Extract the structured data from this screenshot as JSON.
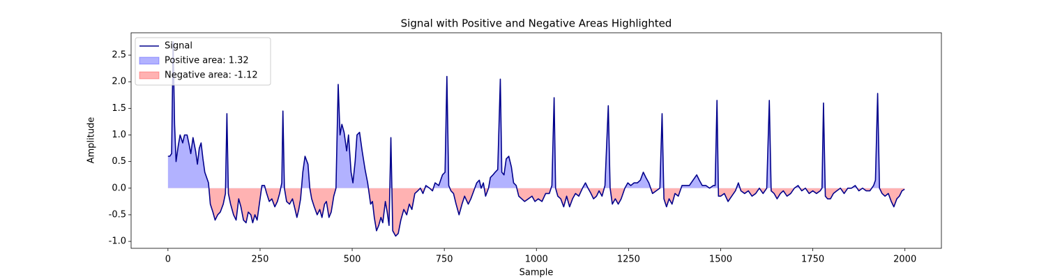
{
  "chart_data": {
    "type": "line",
    "title": "Signal with Positive and Negative Areas Highlighted",
    "x_label": "Sample",
    "y_label": "Amplitude",
    "x": [
      0,
      5,
      10,
      14,
      18,
      22,
      28,
      33,
      40,
      45,
      52,
      58,
      62,
      68,
      75,
      80,
      85,
      90,
      95,
      100,
      105,
      110,
      115,
      122,
      128,
      135,
      142,
      150,
      156,
      160,
      164,
      170,
      178,
      185,
      192,
      198,
      205,
      212,
      218,
      225,
      230,
      236,
      242,
      248,
      255,
      262,
      268,
      275,
      282,
      290,
      297,
      303,
      309,
      312,
      316,
      322,
      330,
      338,
      345,
      350,
      355,
      360,
      366,
      372,
      380,
      385,
      390,
      397,
      405,
      412,
      418,
      425,
      430,
      437,
      443,
      450,
      456,
      462,
      467,
      472,
      478,
      485,
      490,
      497,
      502,
      508,
      513,
      520,
      527,
      535,
      542,
      550,
      555,
      560,
      566,
      572,
      578,
      583,
      590,
      595,
      600,
      605,
      610,
      618,
      625,
      632,
      640,
      648,
      655,
      662,
      670,
      678,
      685,
      692,
      700,
      710,
      718,
      725,
      735,
      745,
      752,
      757,
      762,
      768,
      775,
      782,
      790,
      798,
      805,
      815,
      822,
      830,
      838,
      845,
      850,
      856,
      862,
      870,
      875,
      882,
      888,
      895,
      902,
      906,
      912,
      918,
      925,
      932,
      938,
      945,
      952,
      960,
      968,
      978,
      988,
      996,
      1005,
      1015,
      1025,
      1035,
      1042,
      1048,
      1052,
      1058,
      1066,
      1074,
      1082,
      1090,
      1098,
      1106,
      1115,
      1125,
      1133,
      1140,
      1148,
      1155,
      1163,
      1170,
      1178,
      1186,
      1195,
      1200,
      1206,
      1214,
      1222,
      1230,
      1240,
      1248,
      1256,
      1265,
      1274,
      1282,
      1290,
      1297,
      1305,
      1315,
      1325,
      1335,
      1341,
      1346,
      1353,
      1360,
      1368,
      1376,
      1385,
      1395,
      1405,
      1415,
      1425,
      1435,
      1442,
      1450,
      1460,
      1470,
      1480,
      1485,
      1490,
      1494,
      1500,
      1510,
      1520,
      1530,
      1540,
      1548,
      1555,
      1565,
      1575,
      1585,
      1595,
      1605,
      1615,
      1625,
      1632,
      1637,
      1645,
      1653,
      1662,
      1670,
      1680,
      1690,
      1700,
      1710,
      1720,
      1730,
      1740,
      1750,
      1760,
      1770,
      1775,
      1779,
      1784,
      1790,
      1798,
      1806,
      1815,
      1825,
      1835,
      1845,
      1855,
      1865,
      1875,
      1885,
      1895,
      1905,
      1915,
      1920,
      1926,
      1931,
      1938,
      1946,
      1955,
      1963,
      1970,
      1978,
      1985,
      1992,
      1999
    ],
    "series": [
      {
        "name": "Signal",
        "color": "#00008b",
        "values": [
          0.6,
          0.6,
          0.65,
          2.75,
          1.2,
          0.5,
          0.8,
          1.0,
          0.85,
          1.0,
          1.0,
          0.8,
          0.65,
          0.95,
          0.7,
          0.45,
          0.75,
          0.85,
          0.55,
          0.3,
          0.2,
          0.1,
          -0.3,
          -0.45,
          -0.6,
          -0.5,
          -0.45,
          -0.3,
          -0.1,
          1.4,
          -0.1,
          -0.3,
          -0.5,
          -0.6,
          -0.2,
          -0.35,
          -0.6,
          -0.65,
          -0.45,
          -0.5,
          -0.65,
          -0.5,
          -0.6,
          -0.3,
          0.05,
          0.05,
          -0.1,
          -0.25,
          -0.2,
          -0.35,
          -0.25,
          -0.1,
          0.1,
          1.45,
          0.0,
          -0.25,
          -0.3,
          -0.2,
          -0.4,
          -0.55,
          -0.4,
          -0.2,
          0.3,
          0.6,
          0.45,
          0.0,
          -0.2,
          -0.35,
          -0.5,
          -0.4,
          -0.55,
          -0.3,
          -0.25,
          -0.55,
          -0.45,
          -0.15,
          0.0,
          1.95,
          1.0,
          1.2,
          1.05,
          0.7,
          1.0,
          0.3,
          0.1,
          0.5,
          1.0,
          1.05,
          0.7,
          0.35,
          0.1,
          -0.3,
          -0.25,
          -0.55,
          -0.8,
          -0.7,
          -0.55,
          -0.65,
          -0.25,
          -0.45,
          -0.7,
          0.95,
          -0.8,
          -0.9,
          -0.85,
          -0.6,
          -0.4,
          -0.5,
          -0.3,
          -0.4,
          -0.1,
          -0.05,
          0.0,
          -0.1,
          0.05,
          0.0,
          -0.05,
          0.1,
          0.05,
          0.25,
          0.3,
          2.1,
          0.05,
          -0.05,
          -0.1,
          -0.3,
          -0.5,
          -0.3,
          -0.15,
          -0.3,
          -0.2,
          -0.05,
          0.1,
          0.15,
          0.0,
          0.1,
          -0.15,
          0.0,
          0.2,
          0.25,
          0.3,
          0.35,
          2.05,
          0.3,
          0.25,
          0.55,
          0.6,
          0.4,
          0.1,
          0.05,
          -0.15,
          -0.2,
          -0.25,
          -0.2,
          -0.15,
          -0.25,
          -0.2,
          -0.25,
          -0.1,
          -0.1,
          0.05,
          1.7,
          0.0,
          -0.15,
          -0.2,
          -0.35,
          -0.15,
          -0.35,
          -0.2,
          -0.1,
          -0.15,
          0.0,
          0.1,
          0.0,
          -0.1,
          -0.2,
          -0.15,
          -0.05,
          -0.15,
          0.05,
          1.55,
          0.0,
          -0.3,
          -0.2,
          -0.3,
          -0.2,
          0.0,
          0.1,
          0.05,
          0.1,
          0.1,
          0.15,
          0.3,
          0.2,
          0.1,
          -0.1,
          -0.05,
          0.0,
          1.4,
          -0.2,
          -0.35,
          -0.2,
          -0.3,
          -0.1,
          -0.15,
          0.05,
          0.05,
          0.05,
          0.15,
          0.25,
          0.15,
          0.05,
          0.05,
          0.0,
          0.05,
          0.05,
          1.65,
          -0.15,
          -0.15,
          -0.1,
          -0.25,
          -0.15,
          -0.05,
          0.1,
          -0.05,
          -0.1,
          -0.05,
          -0.15,
          -0.1,
          0.0,
          -0.1,
          0.0,
          1.65,
          -0.05,
          -0.1,
          -0.2,
          -0.1,
          -0.05,
          -0.15,
          -0.1,
          0.0,
          0.05,
          -0.05,
          0.0,
          -0.1,
          -0.05,
          -0.1,
          -0.05,
          0.0,
          1.6,
          -0.15,
          -0.2,
          -0.2,
          -0.1,
          -0.05,
          0.0,
          -0.1,
          0.0,
          0.0,
          0.05,
          -0.05,
          0.0,
          -0.05,
          -0.05,
          0.05,
          0.15,
          1.78,
          0.0,
          -0.1,
          -0.15,
          -0.1,
          -0.25,
          -0.35,
          -0.2,
          -0.15,
          -0.05,
          -0.02
        ]
      }
    ],
    "fills": [
      {
        "name": "Positive area: 1.32",
        "color": "#0000ff"
      },
      {
        "name": "Negative area: -1.12",
        "color": "#ff0000"
      }
    ],
    "xlim": [
      -100,
      2099
    ],
    "ylim": [
      -1.13,
      2.92
    ],
    "xticks": [
      0,
      250,
      500,
      750,
      1000,
      1250,
      1500,
      1750,
      2000
    ],
    "yticks": [
      {
        "value": -1,
        "label": "-1.0"
      },
      -0.5,
      {
        "value": 0,
        "label": "0.0"
      },
      0.5,
      {
        "value": 1,
        "label": "1.0"
      },
      1.5,
      {
        "value": 2,
        "label": "2.0"
      },
      2.5
    ],
    "legend": "upper left"
  }
}
